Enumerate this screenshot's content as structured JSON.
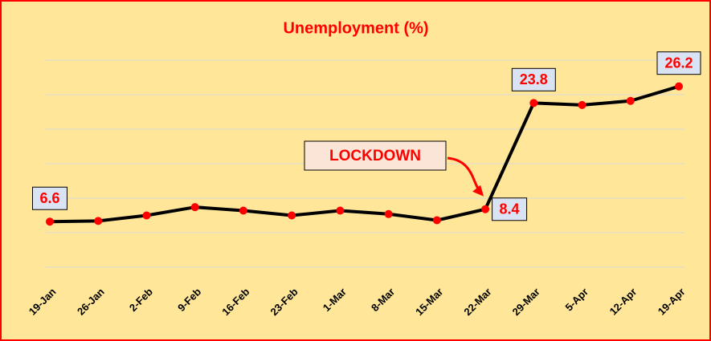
{
  "chart_data": {
    "type": "line",
    "title": "Unemployment (%)",
    "categories": [
      "19-Jan",
      "26-Jan",
      "2-Feb",
      "9-Feb",
      "16-Feb",
      "23-Feb",
      "1-Mar",
      "8-Mar",
      "15-Mar",
      "22-Mar",
      "29-Mar",
      "5-Apr",
      "12-Apr",
      "19-Apr"
    ],
    "values": [
      6.6,
      6.7,
      7.5,
      8.7,
      8.2,
      7.5,
      8.2,
      7.7,
      6.8,
      8.4,
      23.8,
      23.5,
      24.1,
      26.2
    ],
    "value_labels": [
      "6.6",
      null,
      null,
      null,
      null,
      null,
      null,
      null,
      null,
      "8.4",
      "23.8",
      null,
      null,
      "26.2"
    ],
    "color": "#000000",
    "marker_color": "#ff0000",
    "ylim": [
      0,
      30
    ],
    "yticks": [
      0,
      5,
      10,
      15,
      20,
      25,
      30
    ],
    "grid": true,
    "annotation": "LOCKDOWN"
  }
}
